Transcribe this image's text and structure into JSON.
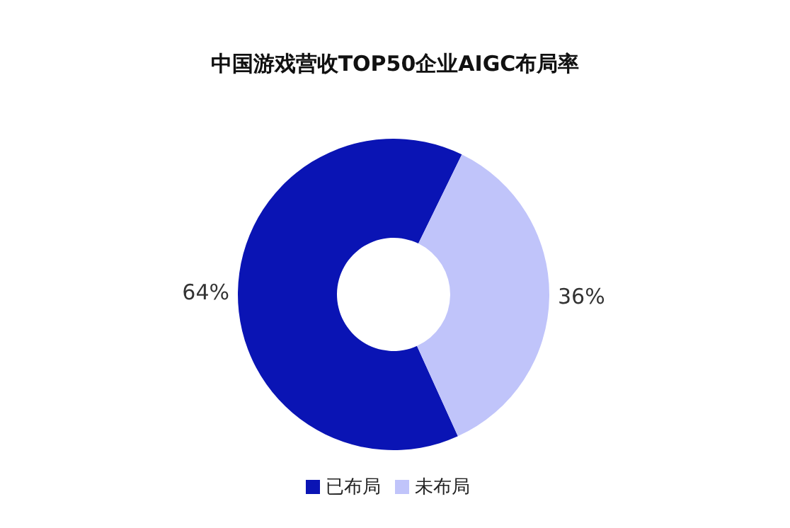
{
  "chart_data": {
    "type": "donut",
    "title": "中国游戏营收TOP50企业AIGC布局率",
    "categories": [
      "已布局",
      "未布局"
    ],
    "values": [
      64,
      36
    ],
    "colors": [
      "#0a14b4",
      "#c0c4fa"
    ],
    "value_labels": [
      "64%",
      "36%"
    ],
    "legend": "bottom"
  }
}
